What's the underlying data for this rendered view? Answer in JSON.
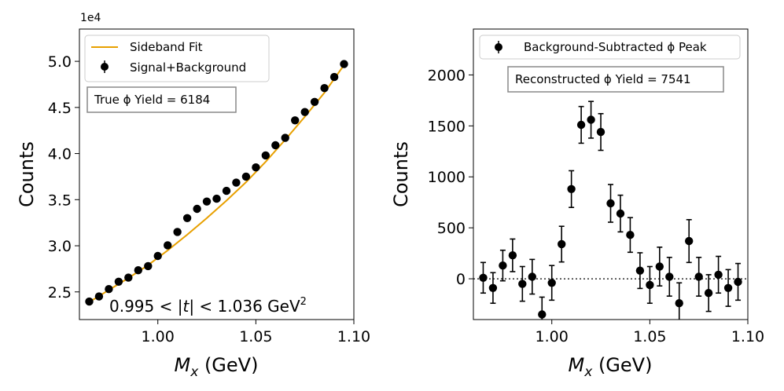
{
  "chart_data": [
    {
      "type": "scatter",
      "title": "",
      "xlabel": "M_x (GeV)",
      "ylabel": "Counts",
      "xlim": [
        0.96,
        1.1
      ],
      "ylim": [
        22000,
        53500
      ],
      "offset_text": "1e4",
      "xticks": [
        1.0,
        1.05,
        1.1
      ],
      "xtick_labels": [
        "1.00",
        "1.05",
        "1.10"
      ],
      "yticks": [
        25000,
        30000,
        35000,
        40000,
        45000,
        50000
      ],
      "ytick_labels": [
        "2.5",
        "3.0",
        "3.5",
        "4.0",
        "4.5",
        "5.0"
      ],
      "legend": [
        "Sideband Fit",
        "Signal+Background"
      ],
      "annotation": "True ϕ Yield = 6184",
      "t_range": {
        "lo": "0.995",
        "hi": "1.036",
        "unit": "GeV",
        "exp": "2"
      },
      "colors": {
        "fit": "#e8a000",
        "points": "#000000"
      },
      "series": [
        {
          "name": "Signal+Background",
          "x": [
            0.965,
            0.97,
            0.975,
            0.98,
            0.985,
            0.99,
            0.995,
            1.0,
            1.005,
            1.01,
            1.015,
            1.02,
            1.025,
            1.03,
            1.035,
            1.04,
            1.045,
            1.05,
            1.055,
            1.06,
            1.065,
            1.07,
            1.075,
            1.08,
            1.085,
            1.09,
            1.095
          ],
          "y": [
            23950,
            24500,
            25300,
            26100,
            26550,
            27350,
            27800,
            28900,
            30050,
            31500,
            33000,
            34000,
            34800,
            35100,
            35950,
            36850,
            37500,
            38500,
            39800,
            40900,
            41700,
            43600,
            44500,
            45600,
            47100,
            48300,
            49700
          ]
        },
        {
          "name": "Sideband Fit",
          "x": [
            0.965,
            0.975,
            0.985,
            0.995,
            1.005,
            1.015,
            1.025,
            1.035,
            1.045,
            1.055,
            1.065,
            1.075,
            1.085,
            1.095
          ],
          "y": [
            23900,
            25200,
            26500,
            27900,
            29500,
            31200,
            33000,
            34900,
            36900,
            39100,
            41500,
            44000,
            46600,
            49600
          ]
        }
      ]
    },
    {
      "type": "scatter",
      "title": "",
      "xlabel": "M_x (GeV)",
      "ylabel": "Counts",
      "xlim": [
        0.96,
        1.1
      ],
      "ylim": [
        -400,
        2450
      ],
      "xticks": [
        1.0,
        1.05,
        1.1
      ],
      "xtick_labels": [
        "1.00",
        "1.05",
        "1.10"
      ],
      "yticks": [
        0,
        500,
        1000,
        1500,
        2000
      ],
      "ytick_labels": [
        "0",
        "500",
        "1000",
        "1500",
        "2000"
      ],
      "legend": [
        "Background-Subtracted ϕ Peak"
      ],
      "annotation": "Reconstructed ϕ Yield = 7541",
      "colors": {
        "points": "#000000"
      },
      "series": [
        {
          "name": "Background-Subtracted ϕ Peak",
          "x": [
            0.965,
            0.97,
            0.975,
            0.98,
            0.985,
            0.99,
            0.995,
            1.0,
            1.005,
            1.01,
            1.015,
            1.02,
            1.025,
            1.03,
            1.035,
            1.04,
            1.045,
            1.05,
            1.055,
            1.06,
            1.065,
            1.07,
            1.075,
            1.08,
            1.085,
            1.09,
            1.095
          ],
          "y": [
            10,
            -90,
            130,
            230,
            -50,
            20,
            -350,
            -40,
            340,
            880,
            1510,
            1560,
            1440,
            740,
            640,
            430,
            80,
            -60,
            120,
            20,
            -240,
            370,
            20,
            -140,
            40,
            -90,
            -30
          ],
          "err": [
            150,
            150,
            150,
            160,
            170,
            170,
            170,
            170,
            175,
            180,
            180,
            180,
            180,
            185,
            180,
            170,
            175,
            180,
            190,
            190,
            200,
            210,
            190,
            180,
            180,
            180,
            180
          ]
        }
      ]
    }
  ]
}
